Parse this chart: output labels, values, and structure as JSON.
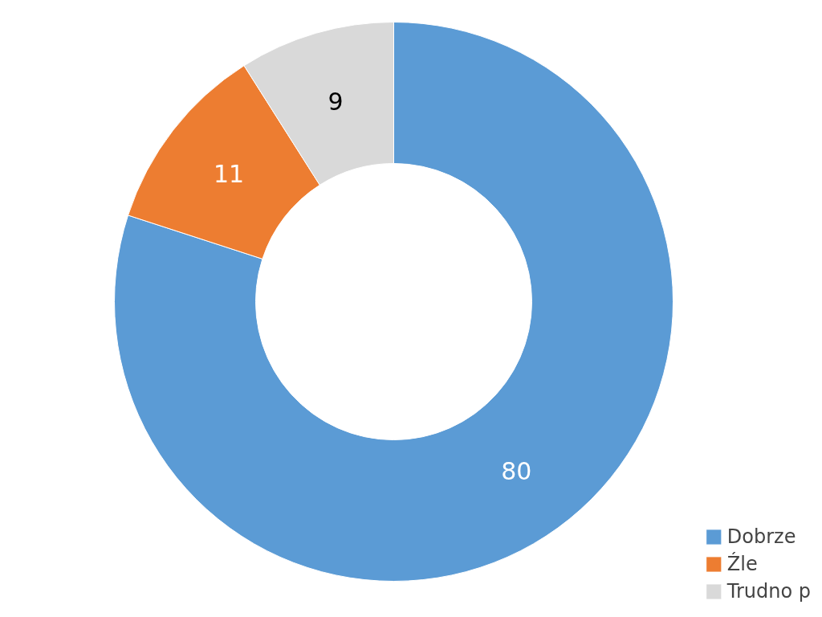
{
  "chart_data": {
    "type": "donut",
    "categories": [
      "Dobrze",
      "Źle",
      "Trudno p"
    ],
    "values": [
      80,
      11,
      9
    ],
    "colors": [
      "#5b9bd5",
      "#ed7d31",
      "#d9d9d9"
    ],
    "data_labels": true,
    "legend": "bottom right"
  }
}
